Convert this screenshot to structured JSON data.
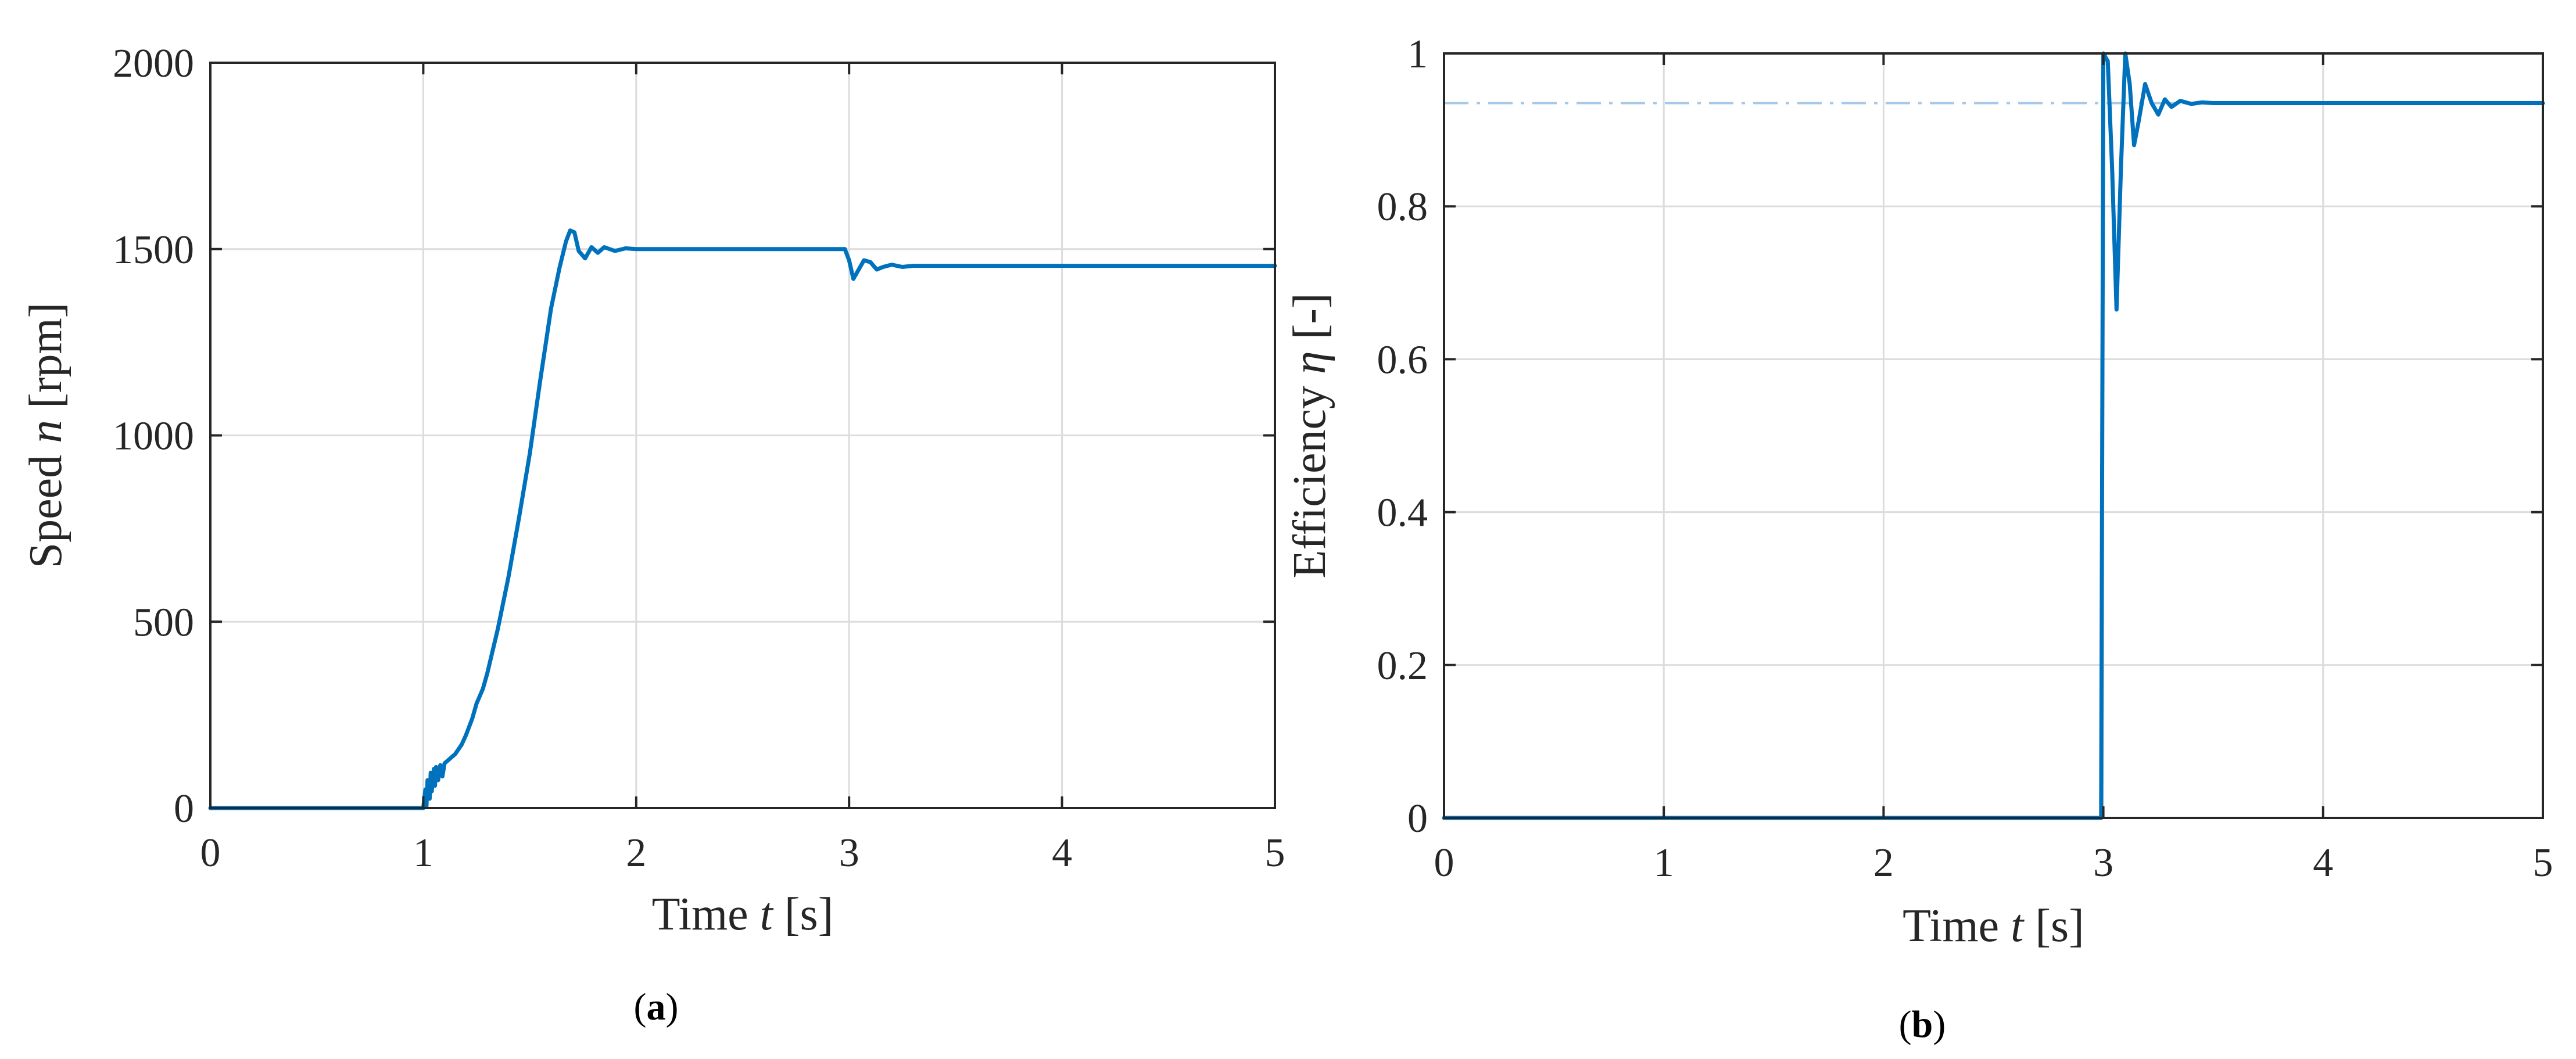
{
  "colors": {
    "series": "#0072BD",
    "reference": "#A6C8E6",
    "grid": "#DCDCDC",
    "axis": "#262626"
  },
  "chart_data": [
    {
      "type": "line",
      "caption": "a",
      "xlabel": {
        "pre": "Time ",
        "var": "t",
        "post": " [s]"
      },
      "ylabel": {
        "pre": "Speed ",
        "var": "n",
        "post": " [rpm]"
      },
      "xlim": [
        0,
        5
      ],
      "ylim": [
        0,
        2000
      ],
      "xticks": [
        0,
        1,
        2,
        3,
        4,
        5
      ],
      "xtick_labels": [
        "0",
        "1",
        "2",
        "3",
        "4",
        "5"
      ],
      "yticks": [
        0,
        500,
        1000,
        1500,
        2000
      ],
      "ytick_labels": [
        "0",
        "500",
        "1000",
        "1500",
        "2000"
      ],
      "grid": true,
      "series": [
        {
          "x": [
            0,
            1.0,
            1.01,
            1.015,
            1.02,
            1.03,
            1.035,
            1.04,
            1.05,
            1.055,
            1.06,
            1.07,
            1.08,
            1.09,
            1.1,
            1.12,
            1.15,
            1.18,
            1.2,
            1.23,
            1.25,
            1.28,
            1.3,
            1.35,
            1.4,
            1.45,
            1.5,
            1.55,
            1.6,
            1.64,
            1.67,
            1.69,
            1.71,
            1.73,
            1.76,
            1.79,
            1.82,
            1.85,
            1.9,
            1.95,
            2.0,
            2.5,
            2.98,
            3.0,
            3.02,
            3.04,
            3.07,
            3.1,
            3.13,
            3.16,
            3.2,
            3.25,
            3.3,
            5.0
          ],
          "y": [
            0,
            0,
            50,
            5,
            75,
            25,
            95,
            45,
            105,
            60,
            110,
            75,
            115,
            85,
            120,
            130,
            145,
            170,
            195,
            240,
            280,
            320,
            360,
            480,
            620,
            780,
            950,
            1150,
            1340,
            1450,
            1520,
            1550,
            1545,
            1495,
            1475,
            1505,
            1490,
            1505,
            1495,
            1502,
            1500,
            1500,
            1500,
            1470,
            1420,
            1440,
            1470,
            1465,
            1445,
            1452,
            1458,
            1452,
            1455,
            1455
          ]
        }
      ]
    },
    {
      "type": "line",
      "caption": "b",
      "xlabel": {
        "pre": "Time ",
        "var": "t",
        "post": " [s]"
      },
      "ylabel": {
        "pre": "Efficiency ",
        "var": "η",
        "post": " [-]"
      },
      "xlim": [
        0,
        5
      ],
      "ylim": [
        0,
        1
      ],
      "xticks": [
        0,
        1,
        2,
        3,
        4,
        5
      ],
      "xtick_labels": [
        "0",
        "1",
        "2",
        "3",
        "4",
        "5"
      ],
      "yticks": [
        0,
        0.2,
        0.4,
        0.6,
        0.8,
        1
      ],
      "ytick_labels": [
        "0",
        "0.2",
        "0.4",
        "0.6",
        "0.8",
        "1"
      ],
      "grid": true,
      "reference_line": {
        "y": 0.935,
        "style": "dash-dot"
      },
      "series": [
        {
          "x": [
            0,
            2.98,
            2.99,
            3.0,
            3.02,
            3.04,
            3.06,
            3.08,
            3.1,
            3.12,
            3.14,
            3.16,
            3.19,
            3.22,
            3.25,
            3.28,
            3.31,
            3.35,
            3.4,
            3.45,
            3.5,
            5.0
          ],
          "y": [
            0,
            0,
            0.0,
            1.0,
            0.99,
            0.85,
            0.665,
            0.85,
            1.0,
            0.96,
            0.88,
            0.91,
            0.96,
            0.935,
            0.92,
            0.94,
            0.93,
            0.938,
            0.934,
            0.936,
            0.935,
            0.935
          ]
        }
      ]
    }
  ]
}
